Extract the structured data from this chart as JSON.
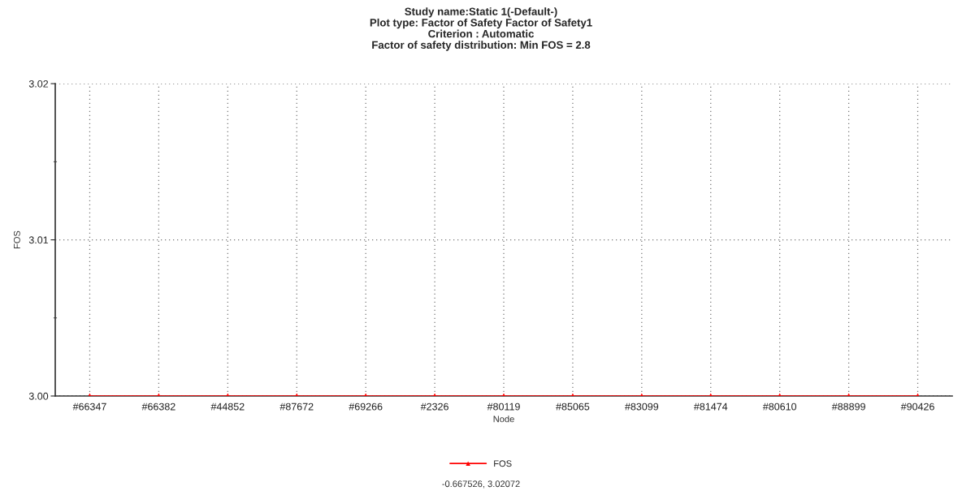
{
  "chart_data": {
    "type": "line",
    "title": "Study name:Static 1(-Default-)\nPlot type: Factor of Safety Factor of Safety1\nCriterion : Automatic\nFactor of safety distribution: Min FOS = 2.8",
    "xlabel": "Node",
    "ylabel": "FOS",
    "categories": [
      "#66347",
      "#66382",
      "#44852",
      "#87672",
      "#69266",
      "#2326",
      "#80119",
      "#85065",
      "#83099",
      "#81474",
      "#80610",
      "#88899",
      "#90426"
    ],
    "series": [
      {
        "name": "FOS",
        "color": "#ff0000",
        "values": [
          3.0,
          3.0,
          3.0,
          3.0,
          3.0,
          3.0,
          3.0,
          3.0,
          3.0,
          3.0,
          3.0,
          3.0,
          3.0
        ]
      }
    ],
    "ylim": [
      3.0,
      3.02
    ],
    "yticks": [
      {
        "value": 3.0,
        "label": "3.00"
      },
      {
        "value": 3.005,
        "label": null
      },
      {
        "value": 3.01,
        "label": "3.01"
      },
      {
        "value": 3.015,
        "label": null
      },
      {
        "value": 3.02,
        "label": "3.02"
      }
    ],
    "grid": true,
    "legend": "bottom",
    "marker": "triangle",
    "line_style": "solid",
    "annotations": [
      "-0.667526, 3.02072"
    ]
  }
}
